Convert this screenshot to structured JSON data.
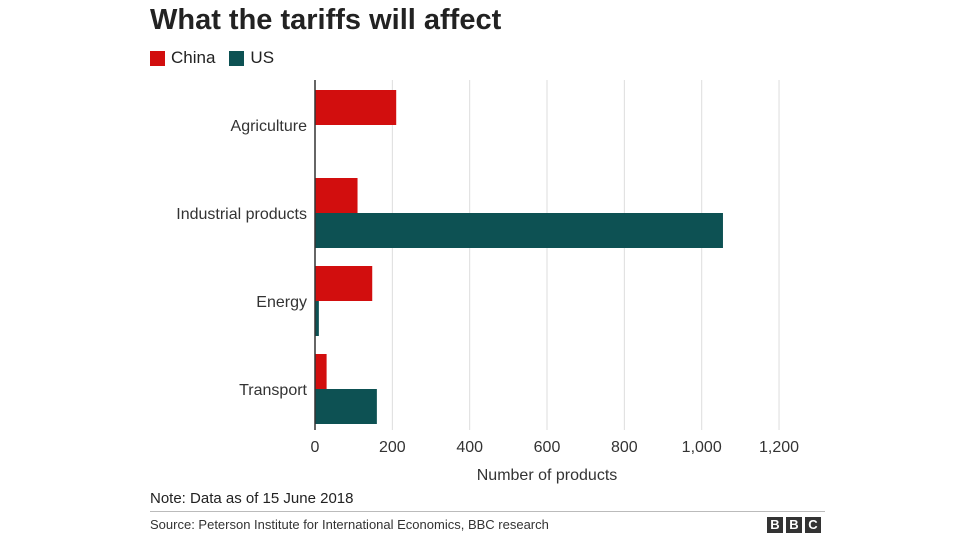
{
  "title": "What the tariffs will affect",
  "legend": [
    {
      "label": "China",
      "color": "#d20e0e"
    },
    {
      "label": "US",
      "color": "#0d5153"
    }
  ],
  "note": "Note: Data as of 15 June 2018",
  "source": "Source: Peterson Institute for International Economics, BBC research",
  "logo": [
    "B",
    "B",
    "C"
  ],
  "chart_data": {
    "type": "bar",
    "orientation": "horizontal",
    "title": "What the tariffs will affect",
    "categories": [
      "Agriculture",
      "Industrial products",
      "Energy",
      "Transport"
    ],
    "series": [
      {
        "name": "China",
        "color": "#d20e0e",
        "values": [
          210,
          110,
          148,
          30
        ]
      },
      {
        "name": "US",
        "color": "#0d5153",
        "values": [
          0,
          1055,
          10,
          160
        ]
      }
    ],
    "xlabel": "Number of products",
    "ylabel": "",
    "xlim": [
      0,
      1200
    ],
    "xticks": [
      0,
      200,
      400,
      600,
      800,
      1000,
      1200
    ],
    "xtick_labels": [
      "0",
      "200",
      "400",
      "600",
      "800",
      "1,000",
      "1,200"
    ],
    "grid": true,
    "legend_position": "top-left"
  }
}
